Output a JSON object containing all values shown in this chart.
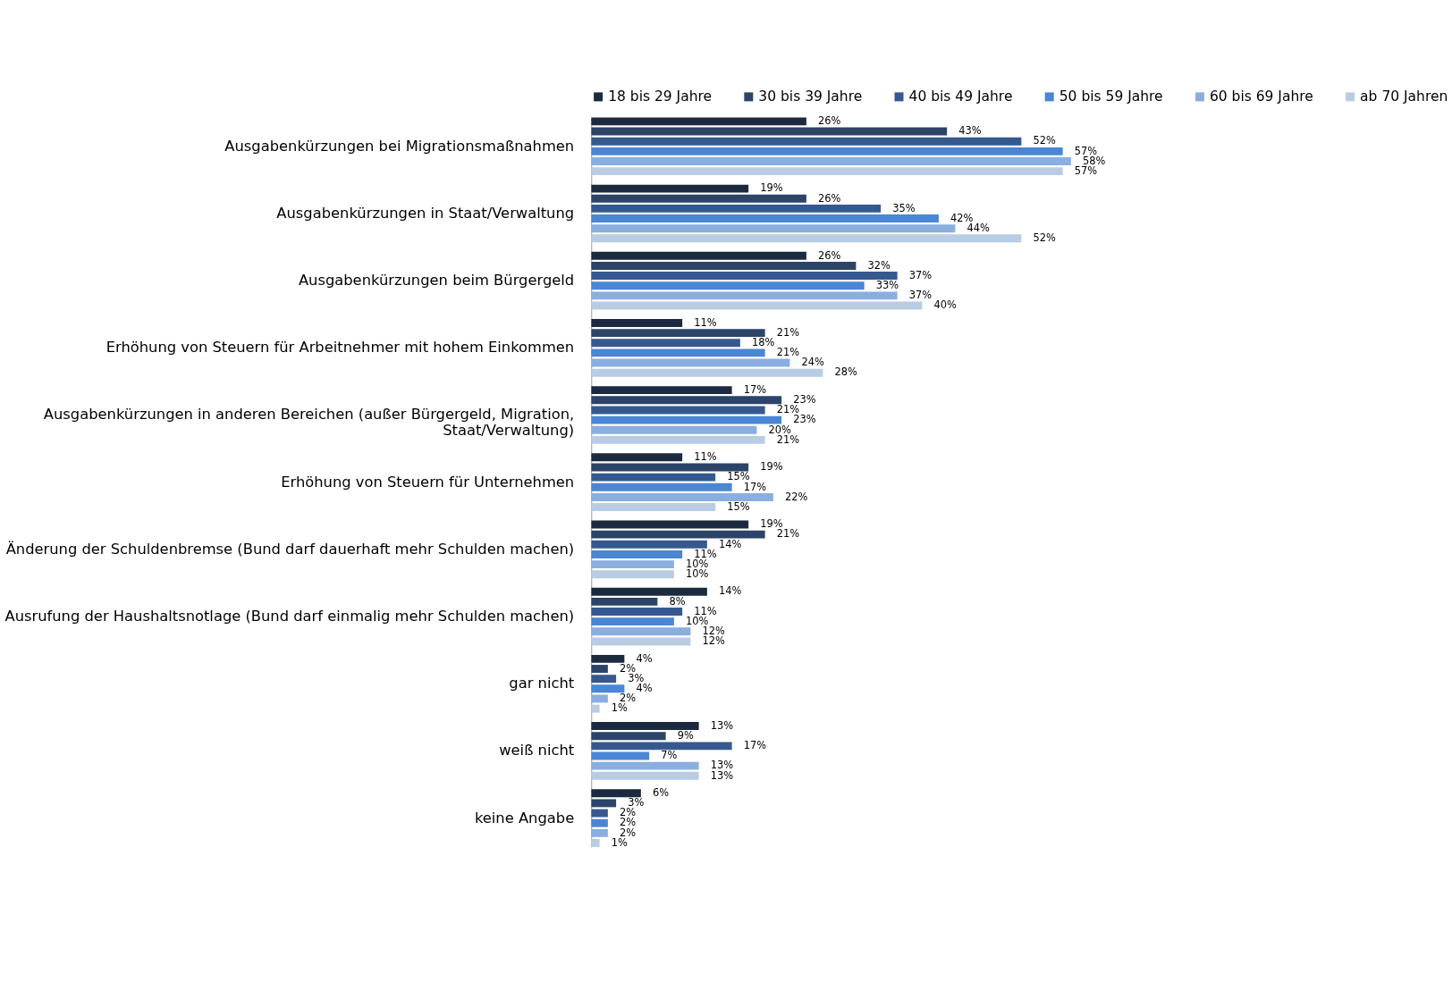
{
  "chart_data": {
    "type": "bar",
    "orientation": "horizontal",
    "legend": "top",
    "grid": false,
    "categories": [
      "Ausgabenkürzungen bei Migrationsmaßnahmen",
      "Ausgabenkürzungen in Staat/Verwaltung",
      "Ausgabenkürzungen beim Bürgergeld",
      "Erhöhung von Steuern für Arbeitnehmer mit hohem Einkommen",
      "Ausgabenkürzungen in anderen Bereichen (außer Bürgergeld, Migration, Staat/Verwaltung)",
      "Erhöhung von Steuern für Unternehmen",
      "Änderung der Schuldenbremse (Bund darf dauerhaft mehr Schulden machen)",
      "Ausrufung der Haushaltsnotlage (Bund darf einmalig mehr Schulden machen)",
      "gar nicht",
      "weiß nicht",
      "keine Angabe"
    ],
    "series": [
      {
        "name": "18 bis 29 Jahre",
        "color": "#1c2a3f",
        "values": [
          26,
          19,
          26,
          11,
          17,
          11,
          19,
          14,
          4,
          13,
          6
        ],
        "value_labels": [
          "26%",
          "19%",
          "26%",
          "11%",
          "17%",
          "11%",
          "19%",
          "14%",
          "4%",
          "13%",
          "6%"
        ]
      },
      {
        "name": "30 bis 39 Jahre",
        "color": "#2b4468",
        "values": [
          43,
          26,
          32,
          21,
          23,
          19,
          21,
          8,
          2,
          9,
          3
        ],
        "value_labels": [
          "43%",
          "26%",
          "32%",
          "21%",
          "23%",
          "19%",
          "21%",
          "8%",
          "2%",
          "9%",
          "3%"
        ]
      },
      {
        "name": "40 bis 49 Jahre",
        "color": "#35598f",
        "values": [
          52,
          35,
          37,
          18,
          21,
          15,
          14,
          11,
          3,
          17,
          2
        ],
        "value_labels": [
          "52%",
          "35%",
          "37%",
          "18%",
          "21%",
          "15%",
          "14%",
          "11%",
          "3%",
          "17%",
          "2%"
        ]
      },
      {
        "name": "50 bis 59 Jahre",
        "color": "#4a86d4",
        "values": [
          57,
          42,
          33,
          21,
          23,
          17,
          11,
          10,
          4,
          7,
          2
        ],
        "value_labels": [
          "57%",
          "42%",
          "33%",
          "21%",
          "23%",
          "17%",
          "11%",
          "10%",
          "4%",
          "7%",
          "2%"
        ]
      },
      {
        "name": "60 bis 69 Jahre",
        "color": "#8aaee0",
        "values": [
          58,
          44,
          37,
          24,
          20,
          22,
          10,
          12,
          2,
          13,
          2
        ],
        "value_labels": [
          "58%",
          "44%",
          "37%",
          "24%",
          "20%",
          "22%",
          "10%",
          "12%",
          "2%",
          "13%",
          "2%"
        ]
      },
      {
        "name": "ab 70 Jahren",
        "color": "#b8cce4",
        "values": [
          57,
          52,
          40,
          28,
          21,
          15,
          10,
          12,
          1,
          13,
          1
        ],
        "value_labels": [
          "57%",
          "52%",
          "40%",
          "28%",
          "21%",
          "15%",
          "10%",
          "12%",
          "1%",
          "13%",
          "1%"
        ]
      }
    ]
  }
}
